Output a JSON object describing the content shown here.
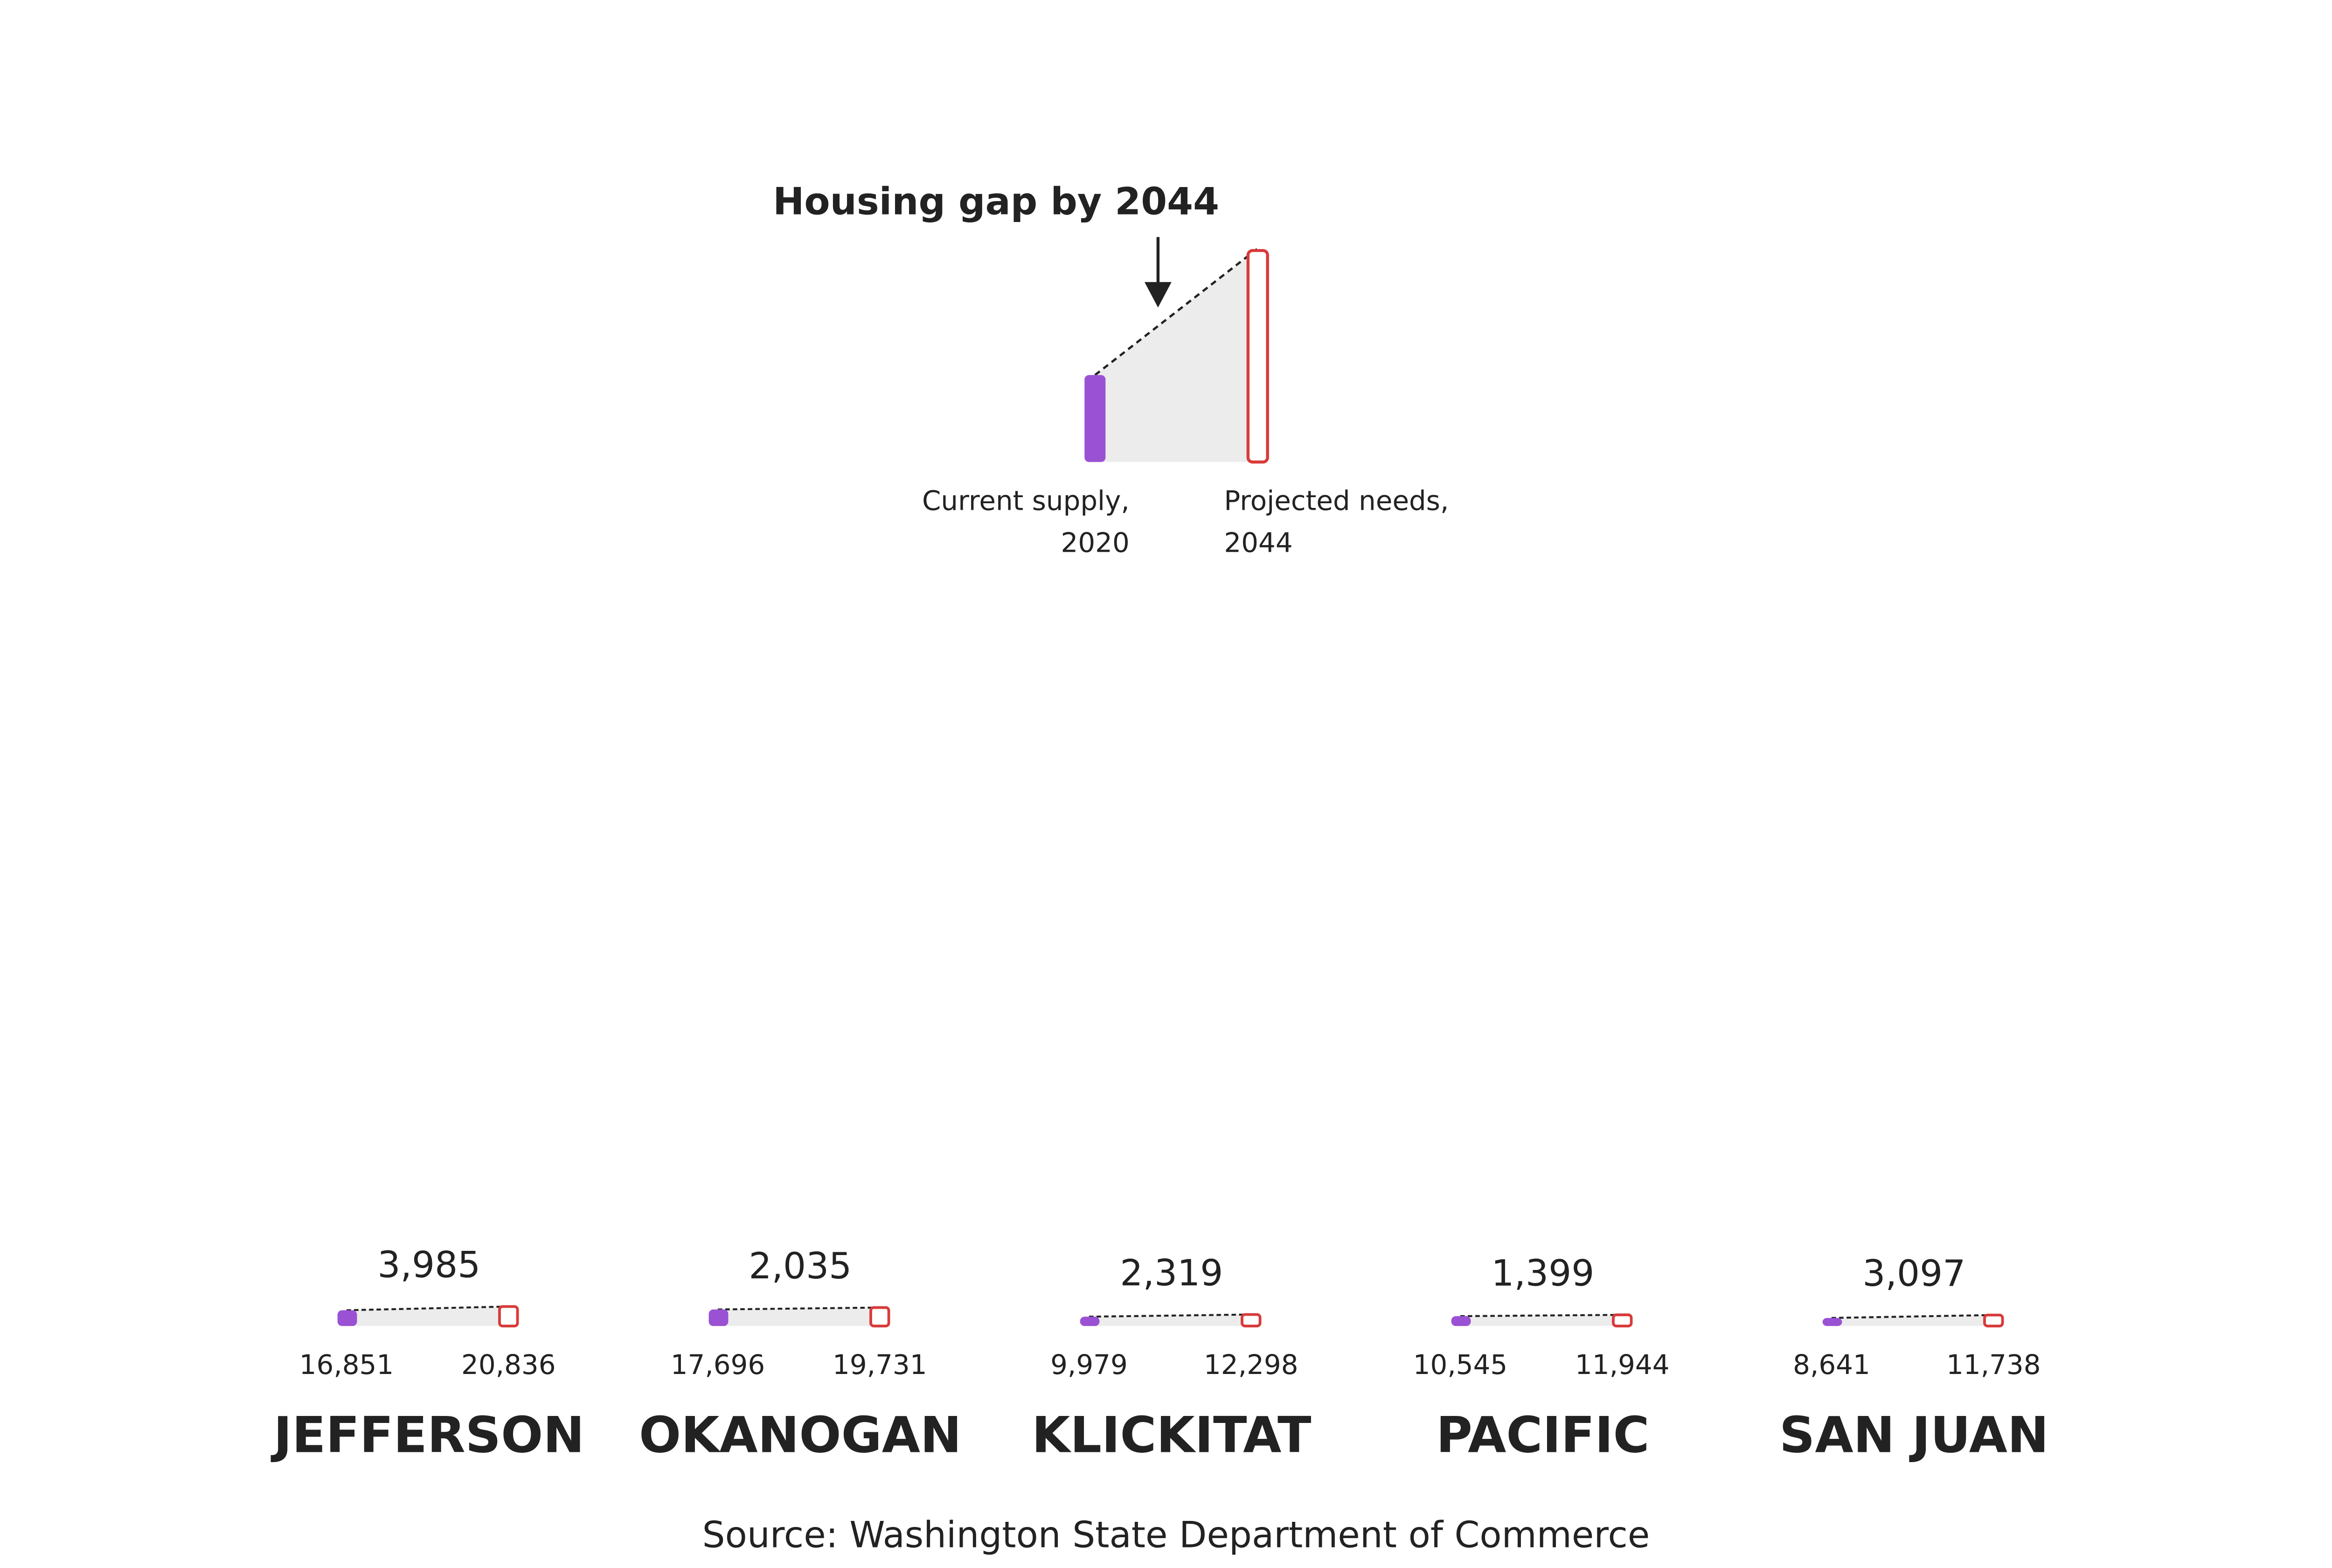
{
  "chart_data": {
    "type": "gap",
    "title": "Housing gap by 2044",
    "legend": [
      [
        "Current supply,",
        "2020"
      ],
      [
        "Projected needs,",
        "2044"
      ]
    ],
    "categories": [
      "JEFFERSON",
      "OKANOGAN",
      "KLICKITAT",
      "PACIFIC",
      "SAN JUAN"
    ],
    "series": [
      {
        "color": "#9b51d4",
        "values": [
          16851,
          17696,
          9979,
          10545,
          8641
        ],
        "value_labels": [
          "16,851",
          "17,696",
          "9,979",
          "10,545",
          "8,641"
        ]
      },
      {
        "color": "#d93a3a",
        "values": [
          20836,
          19731,
          12298,
          11944,
          11738
        ],
        "value_labels": [
          "20,836",
          "19,731",
          "12,298",
          "11,944",
          "11,738"
        ]
      }
    ],
    "gaps": {
      "values": [
        3985,
        2035,
        2319,
        1399,
        3097
      ],
      "value_labels": [
        "3,985",
        "2,035",
        "2,319",
        "1,399",
        "3,097"
      ]
    },
    "source": "Source: Washington State Department of Commerce"
  }
}
